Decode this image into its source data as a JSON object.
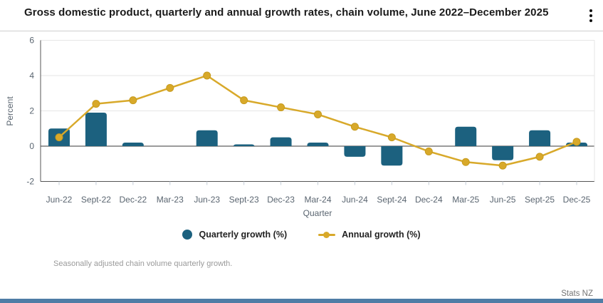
{
  "header": {
    "title": "Gross domestic product, quarterly and annual growth rates, chain volume, June 2022–December 2025",
    "menu_icon": "kebab-menu-icon"
  },
  "chart_data": {
    "type": "combo_bar_line",
    "categories": [
      "Jun-22",
      "Sept-22",
      "Dec-22",
      "Mar-23",
      "Jun-23",
      "Sept-23",
      "Dec-23",
      "Mar-24",
      "Jun-24",
      "Sept-24",
      "Dec-24",
      "Mar-25",
      "Jun-25",
      "Sept-25",
      "Dec-25"
    ],
    "series": [
      {
        "name": "Quarterly growth (%)",
        "type": "bar",
        "color": "#1c617f",
        "values": [
          1.0,
          1.9,
          0.2,
          0.0,
          0.9,
          0.1,
          0.5,
          0.2,
          -0.6,
          -1.1,
          0.0,
          1.1,
          -0.8,
          0.9,
          0.2
        ]
      },
      {
        "name": "Annual growth (%)",
        "type": "line",
        "color": "#d8a92a",
        "values": [
          0.5,
          2.4,
          2.6,
          3.3,
          4.0,
          2.6,
          2.2,
          1.8,
          1.1,
          0.5,
          -0.3,
          -0.9,
          -1.1,
          -0.6,
          0.25
        ]
      }
    ],
    "xlabel": "Quarter",
    "ylabel": "Percent",
    "ylim": [
      -2,
      6
    ],
    "yticks": [
      6,
      4,
      2,
      0,
      -2
    ],
    "grid": true,
    "legend_position": "bottom"
  },
  "footnote": "Seasonally adjusted chain volume quarterly growth.",
  "attribution": "Stats NZ",
  "colors": {
    "bar_series": "#1c617f",
    "line_series": "#d8a92a",
    "gridline": "#e6e6e6",
    "zero_line": "#9b9b9b",
    "axis_line": "#555555",
    "tick_label": "#5a6570",
    "footer_bar": "#4f7da6"
  }
}
